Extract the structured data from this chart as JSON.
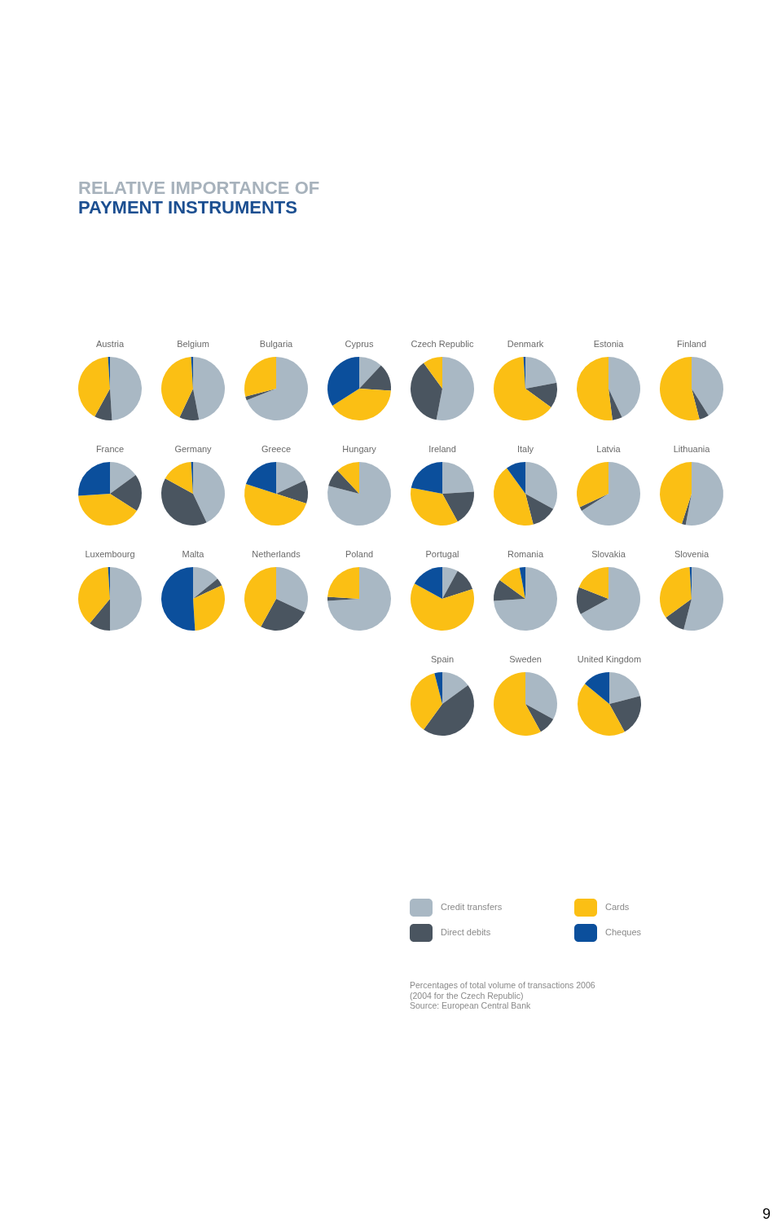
{
  "chart_data": {
    "type": "pie",
    "title": "RELATIVE IMPORTANCE OF",
    "subtitle": "PAYMENT INSTRUMENTS",
    "categories": [
      "Credit transfers",
      "Direct debits",
      "Cards",
      "Cheques"
    ],
    "colors": [
      "#a9b8c4",
      "#4a5560",
      "#fbbf14",
      "#0b4f9c"
    ],
    "legend": "bottom right",
    "annotations": [
      "Percentages of total volume of transactions 2006",
      "(2004 for the Czech Republic)",
      "Source: European Central Bank",
      "9"
    ],
    "series": [
      {
        "name": "Austria",
        "values": [
          49,
          9,
          41,
          1
        ]
      },
      {
        "name": "Belgium",
        "values": [
          47,
          10,
          42,
          1
        ]
      },
      {
        "name": "Bulgaria",
        "values": [
          69,
          2,
          29,
          0
        ]
      },
      {
        "name": "Cyprus",
        "values": [
          12,
          14,
          40,
          34
        ]
      },
      {
        "name": "Czech Republic",
        "values": [
          53,
          37,
          10,
          0
        ]
      },
      {
        "name": "Denmark",
        "values": [
          22,
          13,
          64,
          1
        ]
      },
      {
        "name": "Estonia",
        "values": [
          43,
          5,
          52,
          0
        ]
      },
      {
        "name": "Finland",
        "values": [
          41,
          5,
          54,
          0
        ]
      },
      {
        "name": "France",
        "values": [
          15,
          19,
          40,
          26
        ]
      },
      {
        "name": "Germany",
        "values": [
          43,
          40,
          16,
          1
        ]
      },
      {
        "name": "Greece",
        "values": [
          18,
          12,
          50,
          20
        ]
      },
      {
        "name": "Hungary",
        "values": [
          79,
          9,
          12,
          0
        ]
      },
      {
        "name": "Ireland",
        "values": [
          24,
          18,
          36,
          22
        ]
      },
      {
        "name": "Italy",
        "values": [
          33,
          13,
          44,
          10
        ]
      },
      {
        "name": "Latvia",
        "values": [
          66,
          2,
          32,
          0
        ]
      },
      {
        "name": "Lithuania",
        "values": [
          53,
          2,
          45,
          0
        ]
      },
      {
        "name": "Luxembourg",
        "values": [
          50,
          11,
          38,
          1
        ]
      },
      {
        "name": "Malta",
        "values": [
          14,
          4,
          31,
          51
        ]
      },
      {
        "name": "Netherlands",
        "values": [
          32,
          26,
          42,
          0
        ]
      },
      {
        "name": "Poland",
        "values": [
          74,
          2,
          24,
          0
        ]
      },
      {
        "name": "Portugal",
        "values": [
          8,
          12,
          63,
          17
        ]
      },
      {
        "name": "Romania",
        "values": [
          74,
          11,
          12,
          3
        ]
      },
      {
        "name": "Slovakia",
        "values": [
          67,
          14,
          19,
          0
        ]
      },
      {
        "name": "Slovenia",
        "values": [
          54,
          11,
          34,
          1
        ]
      },
      {
        "name": "Spain",
        "values": [
          15,
          45,
          36,
          4
        ]
      },
      {
        "name": "Sweden",
        "values": [
          33,
          9,
          58,
          0
        ]
      },
      {
        "name": "United Kingdom",
        "values": [
          21,
          21,
          44,
          14
        ]
      }
    ]
  }
}
